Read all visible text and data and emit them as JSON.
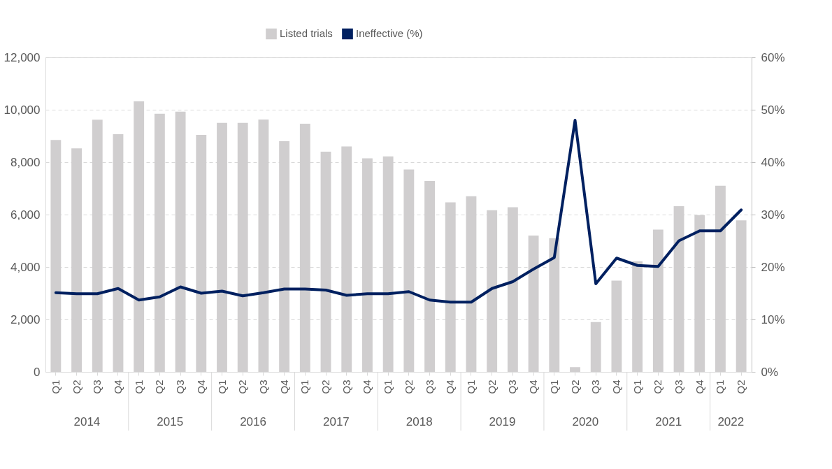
{
  "chart_data": {
    "type": "bar",
    "categories": [
      "Q1",
      "Q2",
      "Q3",
      "Q4",
      "Q1",
      "Q2",
      "Q3",
      "Q4",
      "Q1",
      "Q2",
      "Q3",
      "Q4",
      "Q1",
      "Q2",
      "Q3",
      "Q4",
      "Q1",
      "Q2",
      "Q3",
      "Q4",
      "Q1",
      "Q2",
      "Q3",
      "Q4",
      "Q1",
      "Q2",
      "Q3",
      "Q4",
      "Q1",
      "Q2",
      "Q3",
      "Q4",
      "Q1",
      "Q2"
    ],
    "series": [
      {
        "name": "Listed trials",
        "color": "#d0cecf",
        "values": [
          8850,
          8530,
          9620,
          9070,
          10320,
          9850,
          9930,
          9040,
          9500,
          9500,
          9630,
          8800,
          9470,
          8400,
          8600,
          8150,
          8220,
          7720,
          7280,
          6470,
          6700,
          6170,
          6280,
          5200,
          5100,
          180,
          1900,
          3480,
          4220,
          5430,
          6320,
          5980,
          7100,
          5780
        ]
      },
      {
        "name": "Ineffective (%)",
        "type": "line",
        "axis": "y2",
        "color": "#002060",
        "values": [
          15.1,
          14.9,
          14.9,
          15.9,
          13.7,
          14.3,
          16.2,
          15.0,
          15.4,
          14.5,
          15.1,
          15.8,
          15.8,
          15.6,
          14.6,
          14.9,
          14.9,
          15.3,
          13.7,
          13.3,
          13.3,
          15.9,
          17.2,
          19.6,
          21.8,
          48.0,
          16.8,
          21.7,
          20.3,
          20.1,
          25.0,
          26.9,
          26.9,
          30.9
        ]
      }
    ],
    "ylim": [
      0,
      12000
    ],
    "yticks": [
      0,
      {
        "value": 2000,
        "label": "2,000"
      },
      {
        "value": 4000,
        "label": "4,000"
      },
      {
        "value": 6000,
        "label": "6,000"
      },
      {
        "value": 8000,
        "label": "8,000"
      },
      {
        "value": 10000,
        "label": "10,000"
      },
      {
        "value": 12000,
        "label": "12,000"
      }
    ],
    "y2lim": [
      0,
      60
    ],
    "y2ticks": [
      {
        "value": 0,
        "label": "0%"
      },
      {
        "value": 10,
        "label": "10%"
      },
      {
        "value": 20,
        "label": "20%"
      },
      {
        "value": 30,
        "label": "30%"
      },
      {
        "value": 40,
        "label": "40%"
      },
      {
        "value": 50,
        "label": "50%"
      },
      {
        "value": 60,
        "label": "60%"
      }
    ],
    "annotations": [
      "2014",
      "2015",
      "2016",
      "2017",
      "2018",
      "2019",
      "2020",
      "2021",
      "2022"
    ],
    "grid": "y",
    "legend": "top"
  }
}
